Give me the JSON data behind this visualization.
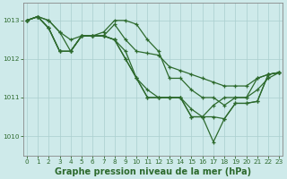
{
  "title": "Graphe pression niveau de la mer (hPa)",
  "lines": [
    {
      "x": [
        0,
        1,
        2,
        3,
        4,
        5,
        6,
        7,
        8,
        9,
        10,
        11,
        12,
        13,
        14,
        15,
        16,
        17,
        18,
        19,
        20,
        21,
        22,
        23
      ],
      "y": [
        1013.0,
        1013.1,
        1013.0,
        1012.7,
        1012.5,
        1012.6,
        1012.6,
        1012.6,
        1012.9,
        1012.5,
        1012.2,
        1012.15,
        1012.1,
        1011.8,
        1011.7,
        1011.6,
        1011.5,
        1011.4,
        1011.3,
        1011.3,
        1011.3,
        1011.5,
        1011.6,
        1011.65
      ]
    },
    {
      "x": [
        0,
        1,
        2,
        3,
        4,
        5,
        6,
        7,
        8,
        9,
        10,
        11,
        12,
        13,
        14,
        15,
        16,
        17,
        18,
        19,
        20,
        21,
        22,
        23
      ],
      "y": [
        1013.0,
        1013.1,
        1013.0,
        1012.7,
        1012.2,
        1012.6,
        1012.6,
        1012.7,
        1013.0,
        1013.0,
        1012.9,
        1012.5,
        1012.2,
        1011.5,
        1011.5,
        1011.2,
        1011.0,
        1011.0,
        1010.8,
        1011.0,
        1011.0,
        1011.5,
        1011.6,
        1011.65
      ]
    },
    {
      "x": [
        0,
        1,
        2,
        3,
        4,
        5,
        6,
        7,
        8,
        9,
        10,
        11,
        12,
        13,
        14,
        15,
        16,
        17,
        18,
        19,
        20,
        21,
        22,
        23
      ],
      "y": [
        1013.0,
        1013.1,
        1012.8,
        1012.2,
        1012.2,
        1012.6,
        1012.6,
        1012.6,
        1012.5,
        1012.2,
        1011.5,
        1011.2,
        1011.0,
        1011.0,
        1011.0,
        1010.7,
        1010.5,
        1010.8,
        1011.0,
        1011.0,
        1011.0,
        1011.2,
        1011.5,
        1011.65
      ]
    },
    {
      "x": [
        0,
        1,
        2,
        3,
        4,
        5,
        6,
        7,
        8,
        9,
        10,
        11,
        12,
        13,
        14,
        15,
        16,
        17,
        18,
        19,
        20,
        21,
        22,
        23
      ],
      "y": [
        1013.0,
        1013.1,
        1012.8,
        1012.2,
        1012.2,
        1012.6,
        1012.6,
        1012.6,
        1012.5,
        1012.0,
        1011.5,
        1011.0,
        1011.0,
        1011.0,
        1011.0,
        1010.5,
        1010.5,
        1009.85,
        1010.45,
        1010.85,
        1010.85,
        1010.9,
        1011.6,
        1011.65
      ]
    },
    {
      "x": [
        0,
        1,
        2,
        3,
        4,
        5,
        6,
        7,
        8,
        9,
        10,
        11,
        12,
        13,
        14,
        15,
        16,
        17,
        18,
        19,
        20,
        21,
        22,
        23
      ],
      "y": [
        1013.0,
        1013.1,
        1012.8,
        1012.2,
        1012.2,
        1012.6,
        1012.6,
        1012.6,
        1012.5,
        1012.0,
        1011.5,
        1011.0,
        1011.0,
        1011.0,
        1011.0,
        1010.5,
        1010.5,
        1010.5,
        1010.45,
        1010.85,
        1010.85,
        1010.9,
        1011.6,
        1011.65
      ]
    }
  ],
  "line_color": "#2d6a2d",
  "marker": "+",
  "marker_size": 3.5,
  "marker_edge_width": 0.9,
  "line_width": 0.9,
  "bg_color": "#ceeaea",
  "grid_color": "#aacece",
  "axis_color": "#888888",
  "ylim": [
    1009.5,
    1013.45
  ],
  "yticks": [
    1010,
    1011,
    1012,
    1013
  ],
  "xlim": [
    -0.3,
    23.3
  ],
  "xticks": [
    0,
    1,
    2,
    3,
    4,
    5,
    6,
    7,
    8,
    9,
    10,
    11,
    12,
    13,
    14,
    15,
    16,
    17,
    18,
    19,
    20,
    21,
    22,
    23
  ],
  "title_fontsize": 7.0,
  "tick_fontsize": 5.2,
  "title_color": "#2d6a2d",
  "tick_color": "#2d6a2d",
  "spine_color": "#888888"
}
